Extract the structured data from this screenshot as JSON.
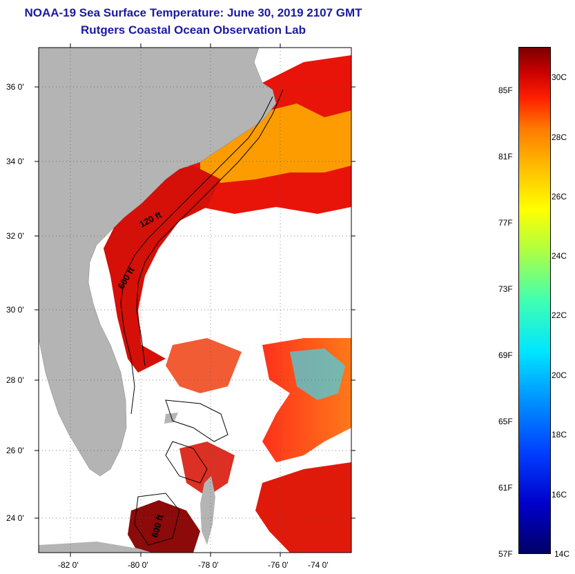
{
  "header": {
    "title": "NOAA-19 Sea Surface Temperature:  June 30, 2019 2107 GMT",
    "subtitle": "Rutgers Coastal Ocean Observation Lab"
  },
  "map": {
    "lat_labels": [
      "36 0'",
      "34 0'",
      "32 0'",
      "30 0'",
      "28 0'",
      "26 0'",
      "24 0'"
    ],
    "lon_labels": [
      "-82 0'",
      "-80 0'",
      "-78 0'",
      "-76 0'",
      "-74 0'"
    ],
    "isobaths": [
      "120 ft",
      "600 ft",
      "600 ft"
    ],
    "colors": {
      "land": "#b4b4b4",
      "cloud_mask": "#ffffff",
      "warm_water": "#e8140a",
      "hot_water": "#8c0a0a",
      "cool_water": "#00c8e6"
    }
  },
  "colorbar": {
    "fahrenheit": [
      "85F",
      "81F",
      "77F",
      "73F",
      "69F",
      "65F",
      "61F",
      "57F"
    ],
    "celsius": [
      "30C",
      "28C",
      "26C",
      "24C",
      "22C",
      "20C",
      "18C",
      "16C",
      "14C"
    ]
  }
}
